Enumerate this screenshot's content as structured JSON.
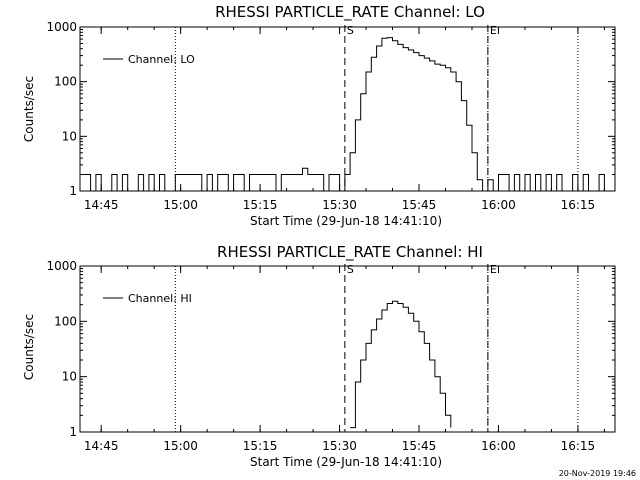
{
  "footer_timestamp": "20-Nov-2019 19:46",
  "chart_data": [
    {
      "type": "line",
      "title": "RHESSI PARTICLE_RATE Channel: LO",
      "xlabel": "Start Time (29-Jun-18 14:41:10)",
      "ylabel": "Counts/sec",
      "y_scale": "log",
      "ylim": [
        1,
        1000
      ],
      "y_ticks": [
        {
          "value": 1,
          "label": "1"
        },
        {
          "value": 10,
          "label": "10"
        },
        {
          "value": 100,
          "label": "100"
        },
        {
          "value": 1000,
          "label": "1000"
        }
      ],
      "xlim": [
        "14:41",
        "16:22"
      ],
      "x_ticks": [
        "14:45",
        "15:00",
        "15:15",
        "15:30",
        "15:45",
        "16:00",
        "16:15"
      ],
      "legend": {
        "placement": "top-left",
        "entries": [
          "Channel: LO"
        ]
      },
      "markers": [
        {
          "label": "S",
          "x": "15:31",
          "style": "dashed"
        },
        {
          "label": "E",
          "x": "15:58",
          "style": "dashed"
        }
      ],
      "dotted_lines": [
        "14:59",
        "15:58",
        "16:15"
      ],
      "series": [
        {
          "name": "Channel: LO",
          "x": [
            "14:41",
            "14:42",
            "14:43",
            "14:44",
            "14:45",
            "14:46",
            "14:47",
            "14:48",
            "14:49",
            "14:50",
            "14:51",
            "14:52",
            "14:53",
            "14:54",
            "14:55",
            "14:56",
            "14:57",
            "14:58",
            "14:59",
            "15:00",
            "15:01",
            "15:02",
            "15:03",
            "15:04",
            "15:05",
            "15:06",
            "15:07",
            "15:08",
            "15:09",
            "15:10",
            "15:11",
            "15:12",
            "15:13",
            "15:14",
            "15:15",
            "15:16",
            "15:17",
            "15:18",
            "15:19",
            "15:20",
            "15:21",
            "15:22",
            "15:23",
            "15:24",
            "15:25",
            "15:26",
            "15:27",
            "15:28",
            "15:29",
            "15:30",
            "15:31",
            "15:32",
            "15:33",
            "15:34",
            "15:35",
            "15:36",
            "15:37",
            "15:38",
            "15:39",
            "15:40",
            "15:41",
            "15:42",
            "15:43",
            "15:44",
            "15:45",
            "15:46",
            "15:47",
            "15:48",
            "15:49",
            "15:50",
            "15:51",
            "15:52",
            "15:53",
            "15:54",
            "15:55",
            "15:56",
            "15:57",
            "15:58",
            "15:59",
            "16:00",
            "16:01",
            "16:02",
            "16:03",
            "16:04",
            "16:05",
            "16:06",
            "16:07",
            "16:08",
            "16:09",
            "16:10",
            "16:11",
            "16:12",
            "16:13",
            "16:14",
            "16:15",
            "16:16",
            "16:17",
            "16:18",
            "16:19",
            "16:20",
            "16:21",
            "16:22"
          ],
          "values": [
            2,
            2,
            1,
            2,
            1,
            1,
            2,
            1,
            2,
            1,
            1,
            2,
            1,
            2,
            1,
            2,
            1,
            1,
            2,
            2,
            2,
            2,
            2,
            1,
            2,
            1,
            2,
            2,
            1,
            2,
            2,
            1,
            2,
            2,
            2,
            2,
            2,
            1,
            2,
            2,
            2,
            2,
            2.6,
            2,
            2,
            2,
            1,
            2,
            2,
            1,
            2,
            5,
            20,
            60,
            150,
            280,
            450,
            620,
            640,
            560,
            480,
            420,
            380,
            340,
            300,
            270,
            240,
            210,
            200,
            180,
            150,
            100,
            45,
            16,
            5,
            1.6,
            1,
            1.6,
            1,
            2,
            2,
            1,
            2,
            1,
            2,
            1,
            2,
            1,
            2,
            1,
            2,
            1,
            1,
            2,
            1,
            2,
            1,
            1,
            2,
            1,
            1,
            1
          ]
        }
      ]
    },
    {
      "type": "line",
      "title": "RHESSI PARTICLE_RATE Channel: HI",
      "xlabel": "Start Time (29-Jun-18 14:41:10)",
      "ylabel": "Counts/sec",
      "y_scale": "log",
      "ylim": [
        1,
        1000
      ],
      "y_ticks": [
        {
          "value": 1,
          "label": "1"
        },
        {
          "value": 10,
          "label": "10"
        },
        {
          "value": 100,
          "label": "100"
        },
        {
          "value": 1000,
          "label": "1000"
        }
      ],
      "xlim": [
        "14:41",
        "16:22"
      ],
      "x_ticks": [
        "14:45",
        "15:00",
        "15:15",
        "15:30",
        "15:45",
        "16:00",
        "16:15"
      ],
      "legend": {
        "placement": "top-left",
        "entries": [
          "Channel: HI"
        ]
      },
      "markers": [
        {
          "label": "S",
          "x": "15:31",
          "style": "dashed"
        },
        {
          "label": "E",
          "x": "15:58",
          "style": "dashed"
        }
      ],
      "dotted_lines": [
        "14:59",
        "15:58",
        "16:15"
      ],
      "series": [
        {
          "name": "Channel: HI",
          "x": [
            "15:32",
            "15:33",
            "15:34",
            "15:35",
            "15:36",
            "15:37",
            "15:38",
            "15:39",
            "15:40",
            "15:41",
            "15:42",
            "15:43",
            "15:44",
            "15:45",
            "15:46",
            "15:47",
            "15:48",
            "15:49",
            "15:50",
            "15:51"
          ],
          "values": [
            1.2,
            8,
            20,
            40,
            70,
            110,
            160,
            210,
            230,
            210,
            180,
            140,
            100,
            65,
            40,
            20,
            10,
            5,
            2,
            1.2
          ]
        }
      ]
    }
  ]
}
